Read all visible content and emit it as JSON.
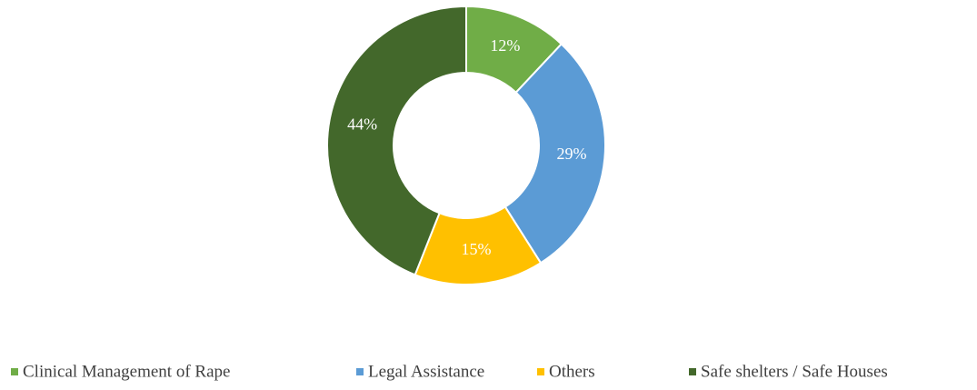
{
  "chart_data": {
    "type": "donut",
    "categories": [
      "Clinical Management of Rape",
      "Legal Assistance",
      "Others",
      "Safe shelters / Safe Houses"
    ],
    "values": [
      12,
      29,
      15,
      44
    ],
    "value_labels": [
      "12%",
      "29%",
      "15%",
      "44%"
    ],
    "colors": [
      "#70ad47",
      "#5b9bd5",
      "#ffc000",
      "#43682b"
    ],
    "legend": "bottom"
  }
}
